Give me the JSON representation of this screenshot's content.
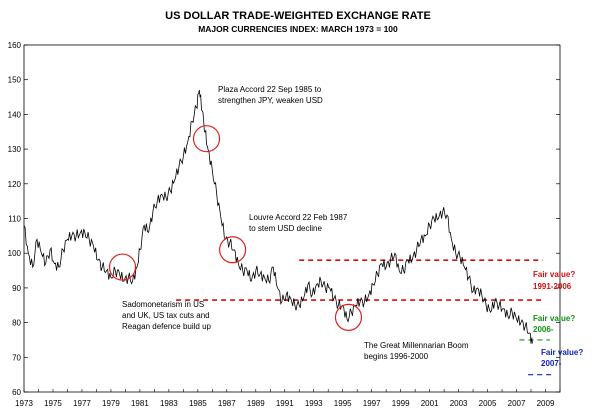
{
  "colors": {
    "line": "#000000",
    "circle": "#e02020",
    "fair_value_red": "#d01010",
    "fair_value_green": "#109010",
    "fair_value_blue": "#1020c0"
  },
  "chart_data": {
    "type": "line",
    "title": "US DOLLAR TRADE-WEIGHTED EXCHANGE RATE",
    "subtitle": "MAJOR CURRENCIES INDEX:  MARCH 1973 = 100",
    "xlim": [
      1973,
      2010
    ],
    "ylim": [
      60,
      160
    ],
    "yticks": [
      60,
      70,
      80,
      90,
      100,
      110,
      120,
      130,
      140,
      150,
      160
    ],
    "xticks": [
      "1973",
      "1975",
      "1977",
      "1979",
      "1981",
      "1983",
      "1985",
      "1987",
      "1989",
      "1991",
      "1993",
      "1995",
      "1997",
      "1999",
      "2001",
      "2003",
      "2005",
      "2007",
      "2009"
    ],
    "series": [
      {
        "x": [
          1973.0,
          1973.3,
          1973.6,
          1973.9,
          1974.2,
          1974.5,
          1974.8,
          1975.1,
          1975.4,
          1975.7,
          1976.0,
          1976.3,
          1976.6,
          1976.9,
          1977.2,
          1977.5,
          1977.8,
          1978.1,
          1978.4,
          1978.7,
          1979.0,
          1979.3,
          1979.6,
          1979.9,
          1980.2,
          1980.5,
          1980.8,
          1981.0,
          1981.3,
          1981.6,
          1981.9,
          1982.2,
          1982.5,
          1982.8,
          1983.1,
          1983.4,
          1983.7,
          1984.0,
          1984.3,
          1984.6,
          1984.9,
          1985.1,
          1985.3,
          1985.5,
          1985.7,
          1986.0,
          1986.3,
          1986.6,
          1986.9,
          1987.2,
          1987.5,
          1987.8,
          1988.1,
          1988.4,
          1988.7,
          1989.0,
          1989.3,
          1989.6,
          1989.9,
          1990.2,
          1990.5,
          1990.8,
          1991.1,
          1991.4,
          1991.7,
          1992.0,
          1992.3,
          1992.6,
          1992.9,
          1993.2,
          1993.5,
          1993.8,
          1994.1,
          1994.4,
          1994.7,
          1995.0,
          1995.3,
          1995.6,
          1995.9,
          1996.2,
          1996.5,
          1996.8,
          1997.1,
          1997.4,
          1997.7,
          1998.0,
          1998.3,
          1998.6,
          1998.9,
          1999.2,
          1999.5,
          1999.8,
          2000.1,
          2000.4,
          2000.7,
          2001.0,
          2001.3,
          2001.6,
          2001.9,
          2002.2,
          2002.5,
          2002.8,
          2003.1,
          2003.4,
          2003.7,
          2004.0,
          2004.3,
          2004.6,
          2004.9,
          2005.2,
          2005.5,
          2005.8,
          2006.1,
          2006.4,
          2006.7,
          2007.0,
          2007.3,
          2007.6,
          2007.9,
          2008.1
        ],
        "values": [
          108,
          100,
          96,
          104,
          100,
          97,
          101,
          97,
          96,
          101,
          104,
          105,
          105,
          106,
          106,
          104,
          102,
          98,
          96,
          95,
          93,
          95,
          94,
          92,
          93,
          92,
          96,
          101,
          108,
          106,
          112,
          115,
          117,
          116,
          118,
          121,
          125,
          128,
          132,
          138,
          142,
          147,
          141,
          135,
          130,
          124,
          117,
          110,
          104,
          103,
          101,
          97,
          95,
          95,
          92,
          95,
          94,
          93,
          92,
          96,
          90,
          86,
          88,
          87,
          85,
          85,
          87,
          91,
          88,
          91,
          92,
          90,
          90,
          87,
          85,
          85,
          81,
          83,
          85,
          86,
          86,
          88,
          91,
          94,
          97,
          96,
          98,
          100,
          95,
          95,
          98,
          98,
          101,
          104,
          105,
          108,
          110,
          110,
          112,
          111,
          104,
          100,
          99,
          96,
          93,
          89,
          90,
          88,
          85,
          83,
          86,
          85,
          84,
          82,
          83,
          81,
          80,
          79,
          77,
          74
        ]
      }
    ],
    "annotations": [
      {
        "lines": [
          "Plaza Accord 22 Sep 1985 to",
          "strengthen JPY, weaken USD"
        ]
      },
      {
        "lines": [
          "Louvre Accord 22 Feb 1987",
          "to stem USD decline"
        ]
      },
      {
        "lines": [
          "Sadomonetarism in US",
          "and UK, US tax cuts and",
          "Reagan defence build up"
        ]
      },
      {
        "lines": [
          "The Great Millennarian Boom",
          "begins 1996-2000"
        ]
      }
    ],
    "circles": [
      {
        "x": 1979.8,
        "y": 96
      },
      {
        "x": 1985.6,
        "y": 133
      },
      {
        "x": 1987.4,
        "y": 101
      },
      {
        "x": 1995.4,
        "y": 81.5
      }
    ],
    "fair_values": [
      {
        "label": "Fair value?",
        "range": "1991-2006",
        "y": 98,
        "color": "red"
      },
      {
        "label": "Fair value?",
        "range": "2006-",
        "y": 86.5,
        "color": "red"
      },
      {
        "label": "Fair value?",
        "range": "2006-",
        "y": 75,
        "color": "green"
      },
      {
        "label": "Fair value?",
        "range": "2007-",
        "y": 65,
        "color": "blue"
      }
    ],
    "fair_value_texts": [
      {
        "line1": "Fair value?",
        "line2": "1991-2006",
        "color": "red"
      },
      {
        "line1": "Fair value?",
        "line2": "2006-",
        "color": "green"
      },
      {
        "line1": "Fair value?",
        "line2": "2007-",
        "color": "blue"
      }
    ]
  }
}
